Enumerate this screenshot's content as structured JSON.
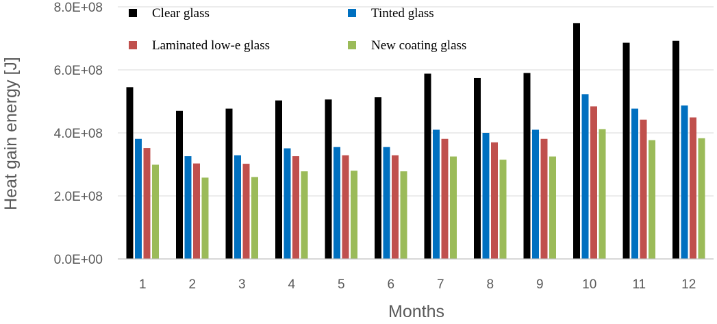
{
  "chart_data": {
    "type": "bar",
    "title": "",
    "xlabel": "Months",
    "ylabel": "Heat gain energy [J]",
    "ylim": [
      0,
      800000000
    ],
    "yticks": [
      {
        "value": 0,
        "label": "0.0E+00"
      },
      {
        "value": 200000000,
        "label": "2.0E+08"
      },
      {
        "value": 400000000,
        "label": "4.0E+08"
      },
      {
        "value": 600000000,
        "label": "6.0E+08"
      },
      {
        "value": 800000000,
        "label": "8.0E+08"
      }
    ],
    "grid": true,
    "legend_position": "top-left",
    "categories": [
      "1",
      "2",
      "3",
      "4",
      "5",
      "6",
      "7",
      "8",
      "9",
      "10",
      "11",
      "12"
    ],
    "series": [
      {
        "name": "Clear glass",
        "color": "#000000",
        "values": [
          545000000,
          470000000,
          477000000,
          503000000,
          506000000,
          513000000,
          588000000,
          574000000,
          590000000,
          748000000,
          686000000,
          692000000
        ]
      },
      {
        "name": "Tinted glass",
        "color": "#0070C0",
        "values": [
          381000000,
          326000000,
          329000000,
          351000000,
          355000000,
          355000000,
          410000000,
          400000000,
          410000000,
          523000000,
          477000000,
          487000000
        ]
      },
      {
        "name": "Laminated low-e glass",
        "color": "#C0504D",
        "values": [
          352000000,
          303000000,
          302000000,
          326000000,
          329000000,
          329000000,
          381000000,
          370000000,
          381000000,
          484000000,
          442000000,
          449000000
        ]
      },
      {
        "name": "New coating glass",
        "color": "#9BBB59",
        "values": [
          299000000,
          258000000,
          260000000,
          278000000,
          280000000,
          278000000,
          325000000,
          315000000,
          325000000,
          412000000,
          377000000,
          383000000
        ]
      }
    ]
  }
}
